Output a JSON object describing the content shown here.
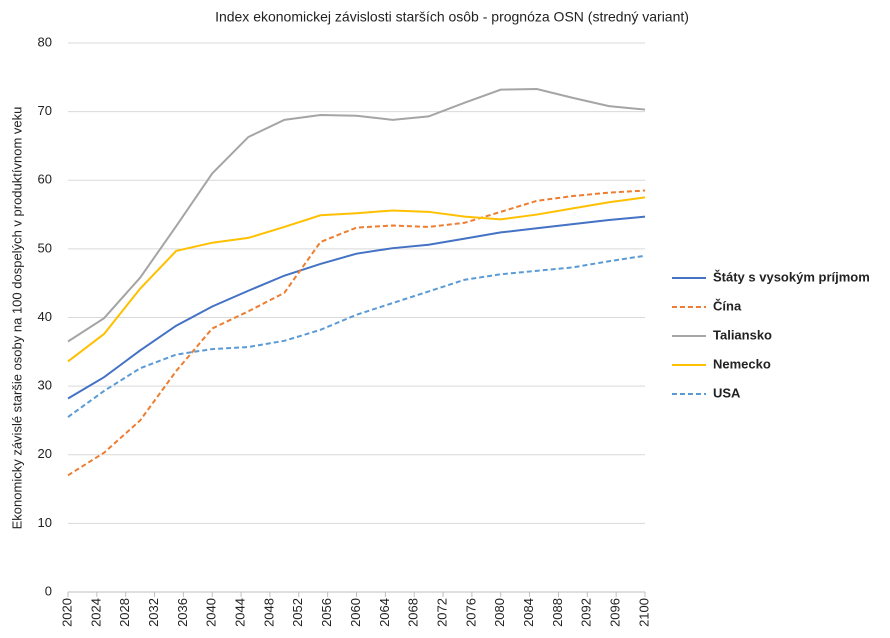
{
  "chart_data": {
    "type": "line",
    "title": "Index ekonomickej závislosti starších osôb - prognóza OSN (stredný variant)",
    "ylabel": "Ekonomicky závislé staršie osoby na 100 dospelých v produktívnom veku",
    "x": [
      2020,
      2025,
      2030,
      2035,
      2040,
      2045,
      2050,
      2055,
      2060,
      2065,
      2070,
      2075,
      2080,
      2085,
      2090,
      2095,
      2100
    ],
    "xlim": [
      2020,
      2100
    ],
    "xticks": [
      2020,
      2024,
      2028,
      2032,
      2036,
      2040,
      2044,
      2048,
      2052,
      2056,
      2060,
      2064,
      2068,
      2072,
      2076,
      2080,
      2084,
      2088,
      2092,
      2096,
      2100
    ],
    "ylim": [
      0,
      80
    ],
    "yticks": [
      0,
      10,
      20,
      30,
      40,
      50,
      60,
      70,
      80
    ],
    "grid": true,
    "legend": "right",
    "series": [
      {
        "name": "Štáty s vysokým príjmom",
        "color": "#4472c4",
        "dash": false,
        "values": [
          28.2,
          31.3,
          35.2,
          38.8,
          41.6,
          43.9,
          46.1,
          47.8,
          49.3,
          50.1,
          50.6,
          51.5,
          52.4,
          53.0,
          53.6,
          54.2,
          54.7
        ]
      },
      {
        "name": "Čína",
        "color": "#ed7d31",
        "dash": true,
        "values": [
          17.0,
          20.3,
          25.0,
          32.2,
          38.4,
          40.9,
          43.6,
          51.0,
          53.1,
          53.4,
          53.2,
          53.8,
          55.4,
          57.0,
          57.7,
          58.2,
          58.5
        ]
      },
      {
        "name": "Taliansko",
        "color": "#a5a5a5",
        "dash": false,
        "values": [
          36.5,
          39.9,
          45.8,
          53.3,
          61.0,
          66.3,
          68.8,
          69.5,
          69.4,
          68.8,
          69.3,
          71.3,
          73.2,
          73.3,
          72.0,
          70.8,
          70.3
        ]
      },
      {
        "name": "Nemecko",
        "color": "#ffc000",
        "dash": false,
        "values": [
          33.6,
          37.6,
          44.2,
          49.7,
          50.9,
          51.6,
          53.2,
          54.9,
          55.2,
          55.6,
          55.4,
          54.7,
          54.3,
          55.0,
          55.9,
          56.8,
          57.5
        ]
      },
      {
        "name": "USA",
        "color": "#5b9bd5",
        "dash": true,
        "values": [
          25.5,
          29.3,
          32.6,
          34.6,
          35.4,
          35.7,
          36.6,
          38.2,
          40.4,
          42.1,
          43.8,
          45.5,
          46.3,
          46.8,
          47.3,
          48.2,
          49.0
        ]
      }
    ]
  }
}
